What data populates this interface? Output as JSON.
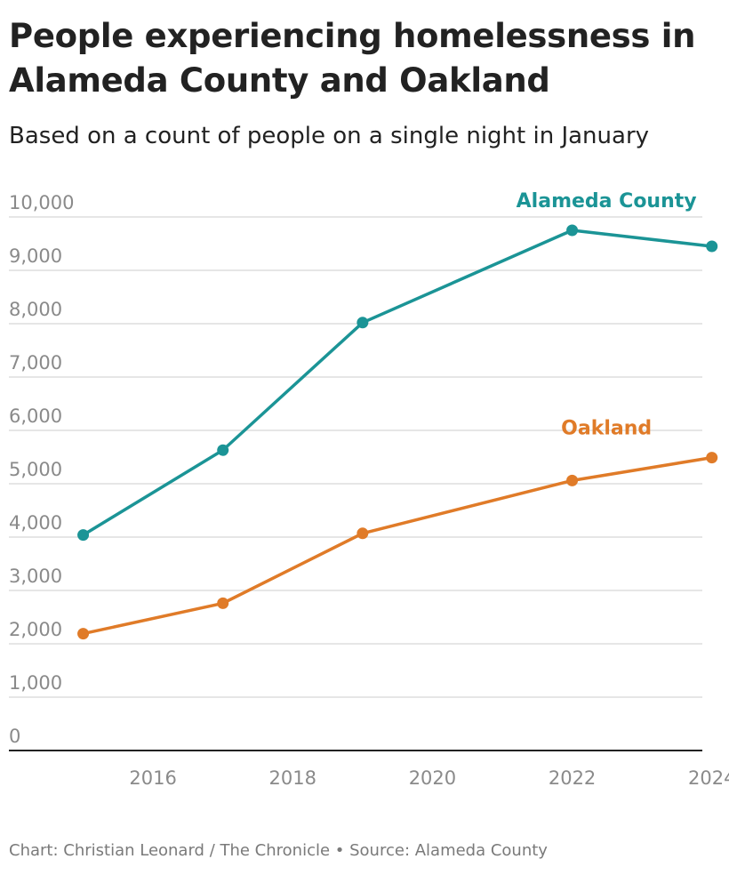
{
  "title": "People experiencing homelessness in Alameda County and Oakland",
  "subtitle": "Based on a count of people on a single night in January",
  "footer": "Chart: Christian Leonard / The Chronicle • Source: Alameda County",
  "chart_data": {
    "type": "line",
    "title": "People experiencing homelessness in Alameda County and Oakland",
    "subtitle": "Based on a count of people on a single night in January",
    "xlabel": "",
    "ylabel": "",
    "x": [
      2015,
      2017,
      2019,
      2022,
      2024
    ],
    "x_ticks": [
      2016,
      2018,
      2020,
      2022,
      2024
    ],
    "x_tick_labels": [
      "2016",
      "2018",
      "2020",
      "2022",
      "2024"
    ],
    "xlim": [
      2014.7,
      2024.5
    ],
    "ylim": [
      0,
      10000
    ],
    "y_ticks": [
      0,
      1000,
      2000,
      3000,
      4000,
      5000,
      6000,
      7000,
      8000,
      9000,
      10000
    ],
    "y_tick_labels": [
      "0",
      "1,000",
      "2,000",
      "3,000",
      "4,000",
      "5,000",
      "6,000",
      "7,000",
      "8,000",
      "9,000",
      "10,000"
    ],
    "grid": true,
    "legend": "direct labels on lines",
    "series": [
      {
        "name": "Alameda County",
        "color": "#1b9496",
        "values": [
          4040,
          5630,
          8020,
          9750,
          9450
        ]
      },
      {
        "name": "Oakland",
        "color": "#e07b28",
        "values": [
          2190,
          2760,
          4070,
          5060,
          5490
        ]
      }
    ],
    "colors": {
      "grid": "#dddddd",
      "axis": "#222222",
      "tick_text": "#8a8a8a"
    }
  }
}
